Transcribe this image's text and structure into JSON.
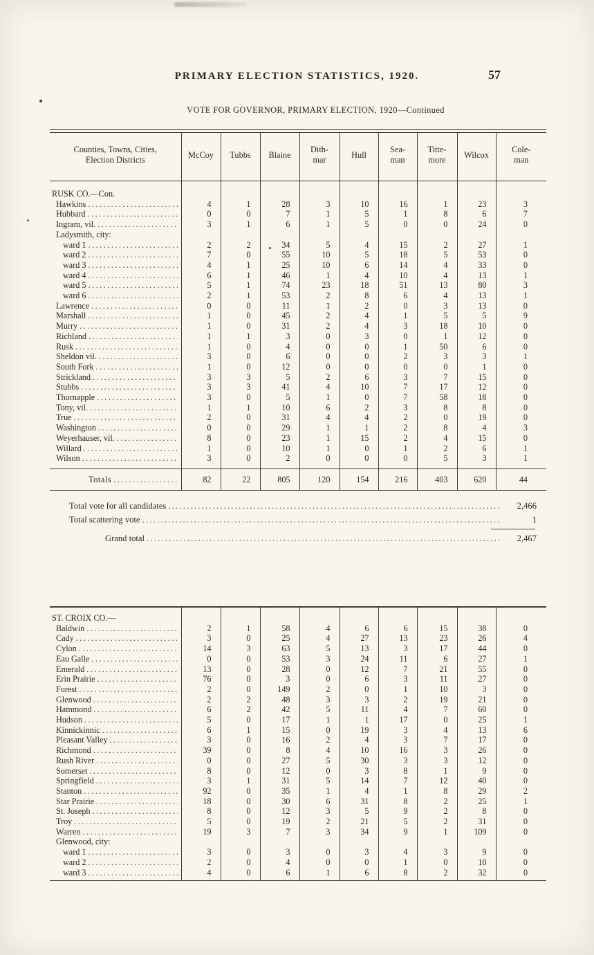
{
  "page": {
    "header_title": "PRIMARY ELECTION STATISTICS, 1920.",
    "page_number": "57",
    "subtitle": "VOTE FOR GOVERNOR, PRIMARY ELECTION, 1920—Continued"
  },
  "table1": {
    "columns": [
      "Counties, Towns, Cities,\nElection Districts",
      "McCoy",
      "Tubbs",
      "Blaine",
      "Dith-\nmar",
      "Hull",
      "Sea-\nman",
      "Titte-\nmore",
      "Wilcox",
      "Cole-\nman"
    ],
    "rows": [
      {
        "type": "section",
        "indent": 0,
        "label": "RUSK CO.—Con."
      },
      {
        "type": "item",
        "indent": 1,
        "label": "Hawkins",
        "values": [
          "4",
          "1",
          "28",
          "3",
          "10",
          "16",
          "1",
          "23",
          "3"
        ]
      },
      {
        "type": "item",
        "indent": 1,
        "label": "Hubbard",
        "values": [
          "0",
          "0",
          "7",
          "1",
          "5",
          "1",
          "8",
          "6",
          "7"
        ]
      },
      {
        "type": "item",
        "indent": 1,
        "label": "Ingram, vil.",
        "values": [
          "3",
          "1",
          "6",
          "1",
          "5",
          "0",
          "0",
          "24",
          "0"
        ]
      },
      {
        "type": "subheader",
        "indent": 1,
        "label": "Ladysmith, city:"
      },
      {
        "type": "item",
        "indent": 2,
        "label": "ward 1",
        "values": [
          "2",
          "2",
          "34",
          "5",
          "4",
          "15",
          "2",
          "27",
          "1"
        ]
      },
      {
        "type": "item",
        "indent": 2,
        "label": "ward 2",
        "values": [
          "7",
          "0",
          "55",
          "10",
          "5",
          "18",
          "5",
          "53",
          "0"
        ]
      },
      {
        "type": "item",
        "indent": 2,
        "label": "ward 3",
        "values": [
          "4",
          "1",
          "25",
          "10",
          "6",
          "14",
          "4",
          "33",
          "0"
        ]
      },
      {
        "type": "item",
        "indent": 2,
        "label": "ward 4",
        "values": [
          "6",
          "1",
          "46",
          "1",
          "4",
          "10",
          "4",
          "13",
          "1"
        ]
      },
      {
        "type": "item",
        "indent": 2,
        "label": "ward 5",
        "values": [
          "5",
          "1",
          "74",
          "23",
          "18",
          "51",
          "13",
          "80",
          "3"
        ]
      },
      {
        "type": "item",
        "indent": 2,
        "label": "ward 6",
        "values": [
          "2",
          "1",
          "53",
          "2",
          "8",
          "6",
          "4",
          "13",
          "1"
        ]
      },
      {
        "type": "item",
        "indent": 1,
        "label": "Lawrence",
        "values": [
          "0",
          "0",
          "11",
          "1",
          "2",
          "0",
          "3",
          "13",
          "0"
        ]
      },
      {
        "type": "item",
        "indent": 1,
        "label": "Marshall",
        "values": [
          "1",
          "0",
          "45",
          "2",
          "4",
          "1",
          "5",
          "5",
          "9"
        ]
      },
      {
        "type": "item",
        "indent": 1,
        "label": "Murry",
        "values": [
          "1",
          "0",
          "31",
          "2",
          "4",
          "3",
          "18",
          "10",
          "0"
        ]
      },
      {
        "type": "item",
        "indent": 1,
        "label": "Richland",
        "values": [
          "1",
          "1",
          "3",
          "0",
          "3",
          "0",
          "1",
          "12",
          "0"
        ]
      },
      {
        "type": "item",
        "indent": 1,
        "label": "Rusk",
        "values": [
          "1",
          "0",
          "4",
          "0",
          "0",
          "1",
          "50",
          "6",
          "0"
        ]
      },
      {
        "type": "item",
        "indent": 1,
        "label": "Sheldon vil.",
        "values": [
          "3",
          "0",
          "6",
          "0",
          "0",
          "2",
          "3",
          "3",
          "1"
        ]
      },
      {
        "type": "item",
        "indent": 1,
        "label": "South Fork",
        "values": [
          "1",
          "0",
          "12",
          "0",
          "0",
          "0",
          "0",
          "1",
          "0"
        ]
      },
      {
        "type": "item",
        "indent": 1,
        "label": "Strickland",
        "values": [
          "3",
          "3",
          "5",
          "2",
          "6",
          "3",
          "7",
          "15",
          "0"
        ]
      },
      {
        "type": "item",
        "indent": 1,
        "label": "Stubbs",
        "values": [
          "3",
          "3",
          "41",
          "4",
          "10",
          "7",
          "17",
          "12",
          "0"
        ]
      },
      {
        "type": "item",
        "indent": 1,
        "label": "Thornapple",
        "values": [
          "3",
          "0",
          "5",
          "1",
          "0",
          "7",
          "58",
          "18",
          "0"
        ]
      },
      {
        "type": "item",
        "indent": 1,
        "label": "Tony, vil.",
        "values": [
          "1",
          "1",
          "10",
          "6",
          "2",
          "3",
          "8",
          "8",
          "0"
        ]
      },
      {
        "type": "item",
        "indent": 1,
        "label": "True",
        "values": [
          "2",
          "0",
          "31",
          "4",
          "4",
          "2",
          "0",
          "19",
          "0"
        ]
      },
      {
        "type": "item",
        "indent": 1,
        "label": "Washington",
        "values": [
          "0",
          "0",
          "29",
          "1",
          "1",
          "2",
          "8",
          "4",
          "3"
        ]
      },
      {
        "type": "item",
        "indent": 1,
        "label": "Weyerhauser, vil.",
        "values": [
          "8",
          "0",
          "23",
          "1",
          "15",
          "2",
          "4",
          "15",
          "0"
        ]
      },
      {
        "type": "item",
        "indent": 1,
        "label": "Willard",
        "values": [
          "1",
          "0",
          "10",
          "1",
          "0",
          "1",
          "2",
          "6",
          "1"
        ]
      },
      {
        "type": "item",
        "indent": 1,
        "label": "Wilson",
        "values": [
          "3",
          "0",
          "2",
          "0",
          "0",
          "0",
          "5",
          "3",
          "1"
        ]
      }
    ],
    "totals": {
      "label": "Totals",
      "values": [
        "82",
        "22",
        "805",
        "120",
        "154",
        "216",
        "403",
        "620",
        "44"
      ]
    }
  },
  "summary": [
    {
      "label": "Total vote for all candidates",
      "value": "2,466"
    },
    {
      "label": "Total scattering vote",
      "value": "1"
    },
    {
      "label": "Grand total",
      "value": "2,467"
    }
  ],
  "table2": {
    "rows": [
      {
        "type": "section",
        "indent": 0,
        "label": "ST. CROIX CO.—"
      },
      {
        "type": "item",
        "indent": 1,
        "label": "Baldwin",
        "values": [
          "2",
          "1",
          "58",
          "4",
          "6",
          "6",
          "15",
          "38",
          "0"
        ]
      },
      {
        "type": "item",
        "indent": 1,
        "label": "Cady",
        "values": [
          "3",
          "0",
          "25",
          "4",
          "27",
          "13",
          "23",
          "26",
          "4"
        ]
      },
      {
        "type": "item",
        "indent": 1,
        "label": "Cylon",
        "values": [
          "14",
          "3",
          "63",
          "5",
          "13",
          "3",
          "17",
          "44",
          "0"
        ]
      },
      {
        "type": "item",
        "indent": 1,
        "label": "Eau Galle",
        "values": [
          "0",
          "0",
          "53",
          "3",
          "24",
          "11",
          "6",
          "27",
          "1"
        ]
      },
      {
        "type": "item",
        "indent": 1,
        "label": "Emerald",
        "values": [
          "13",
          "0",
          "28",
          "0",
          "12",
          "7",
          "21",
          "55",
          "0"
        ]
      },
      {
        "type": "item",
        "indent": 1,
        "label": "Erin Prairie",
        "values": [
          "76",
          "0",
          "3",
          "0",
          "6",
          "3",
          "11",
          "27",
          "0"
        ]
      },
      {
        "type": "item",
        "indent": 1,
        "label": "Forest",
        "values": [
          "2",
          "0",
          "149",
          "2",
          "0",
          "1",
          "10",
          "3",
          "0"
        ]
      },
      {
        "type": "item",
        "indent": 1,
        "label": "Glenwood",
        "values": [
          "2",
          "2",
          "48",
          "3",
          "3",
          "2",
          "19",
          "21",
          "0"
        ]
      },
      {
        "type": "item",
        "indent": 1,
        "label": "Hammond",
        "values": [
          "6",
          "2",
          "42",
          "5",
          "11",
          "4",
          "7",
          "60",
          "0"
        ]
      },
      {
        "type": "item",
        "indent": 1,
        "label": "Hudson",
        "values": [
          "5",
          "0",
          "17",
          "1",
          "1",
          "17",
          "0",
          "25",
          "1"
        ]
      },
      {
        "type": "item",
        "indent": 1,
        "label": "Kinnickinnic",
        "values": [
          "6",
          "1",
          "15",
          "0",
          "19",
          "3",
          "4",
          "13",
          "6"
        ]
      },
      {
        "type": "item",
        "indent": 1,
        "label": "Pleasant Valley",
        "values": [
          "3",
          "0",
          "16",
          "2",
          "4",
          "3",
          "7",
          "17",
          "0"
        ]
      },
      {
        "type": "item",
        "indent": 1,
        "label": "Richmond",
        "values": [
          "39",
          "0",
          "8",
          "4",
          "10",
          "16",
          "3",
          "26",
          "0"
        ]
      },
      {
        "type": "item",
        "indent": 1,
        "label": "Rush River",
        "values": [
          "0",
          "0",
          "27",
          "5",
          "30",
          "3",
          "3",
          "12",
          "0"
        ]
      },
      {
        "type": "item",
        "indent": 1,
        "label": "Somerset",
        "values": [
          "8",
          "0",
          "12",
          "0",
          "3",
          "8",
          "1",
          "9",
          "0"
        ]
      },
      {
        "type": "item",
        "indent": 1,
        "label": "Springfield",
        "values": [
          "3",
          "1",
          "31",
          "5",
          "14",
          "7",
          "12",
          "40",
          "0"
        ]
      },
      {
        "type": "item",
        "indent": 1,
        "label": "Stanton",
        "values": [
          "92",
          "0",
          "35",
          "1",
          "4",
          "1",
          "8",
          "29",
          "2"
        ]
      },
      {
        "type": "item",
        "indent": 1,
        "label": "Star Prairie",
        "values": [
          "18",
          "0",
          "30",
          "6",
          "31",
          "8",
          "2",
          "25",
          "1"
        ]
      },
      {
        "type": "item",
        "indent": 1,
        "label": "St. Joseph",
        "values": [
          "8",
          "0",
          "12",
          "3",
          "5",
          "9",
          "2",
          "8",
          "0"
        ]
      },
      {
        "type": "item",
        "indent": 1,
        "label": "Troy",
        "values": [
          "5",
          "0",
          "19",
          "2",
          "21",
          "5",
          "2",
          "31",
          "0"
        ]
      },
      {
        "type": "item",
        "indent": 1,
        "label": "Warren",
        "values": [
          "19",
          "3",
          "7",
          "3",
          "34",
          "9",
          "1",
          "109",
          "0"
        ]
      },
      {
        "type": "subheader",
        "indent": 1,
        "label": "Glenwood, city:"
      },
      {
        "type": "item",
        "indent": 2,
        "label": "ward 1",
        "values": [
          "3",
          "0",
          "3",
          "0",
          "3",
          "4",
          "3",
          "9",
          "0"
        ]
      },
      {
        "type": "item",
        "indent": 2,
        "label": "ward 2",
        "values": [
          "2",
          "0",
          "4",
          "0",
          "0",
          "1",
          "0",
          "10",
          "0"
        ]
      },
      {
        "type": "item",
        "indent": 2,
        "label": "ward 3",
        "values": [
          "4",
          "0",
          "6",
          "1",
          "6",
          "8",
          "2",
          "32",
          "0"
        ]
      }
    ]
  }
}
